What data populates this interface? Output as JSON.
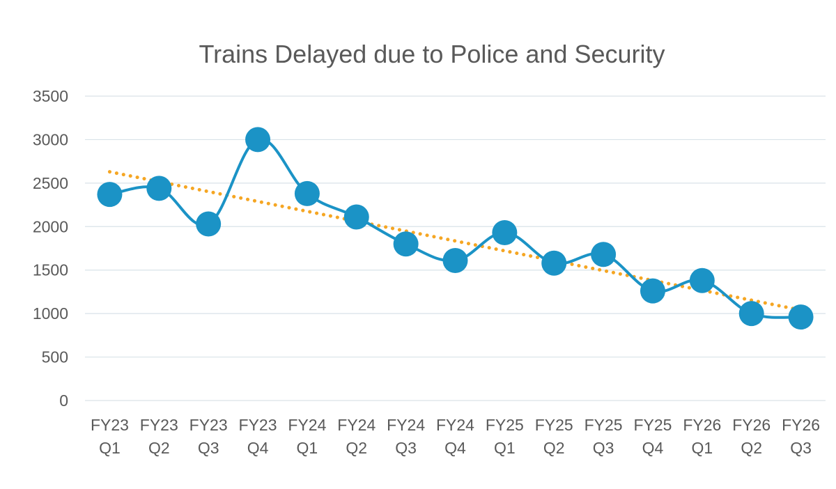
{
  "chart_data": {
    "type": "line",
    "title": "Trains Delayed due to Police and Security",
    "xlabel": "",
    "ylabel": "",
    "ylim": [
      0,
      3500
    ],
    "yticks": [
      "0",
      "500",
      "1000",
      "1500",
      "2000",
      "2500",
      "3000",
      "3500"
    ],
    "categories": [
      [
        "FY23",
        "Q1"
      ],
      [
        "FY23",
        "Q2"
      ],
      [
        "FY23",
        "Q3"
      ],
      [
        "FY23",
        "Q4"
      ],
      [
        "FY24",
        "Q1"
      ],
      [
        "FY24",
        "Q2"
      ],
      [
        "FY24",
        "Q3"
      ],
      [
        "FY24",
        "Q4"
      ],
      [
        "FY25",
        "Q1"
      ],
      [
        "FY25",
        "Q2"
      ],
      [
        "FY25",
        "Q3"
      ],
      [
        "FY25",
        "Q4"
      ],
      [
        "FY26",
        "Q1"
      ],
      [
        "FY26",
        "Q2"
      ],
      [
        "FY26",
        "Q3"
      ]
    ],
    "series": [
      {
        "values": [
          2370,
          2440,
          2030,
          3000,
          2380,
          2110,
          1800,
          1610,
          1930,
          1580,
          1680,
          1260,
          1380,
          1000,
          960
        ],
        "color": "#1b93c6",
        "marker": "circle"
      }
    ],
    "trendline": {
      "type": "linear",
      "style": "dotted",
      "color": "#f5a623",
      "start": 2630,
      "end": 1040
    },
    "grid": true,
    "legend": "none"
  }
}
